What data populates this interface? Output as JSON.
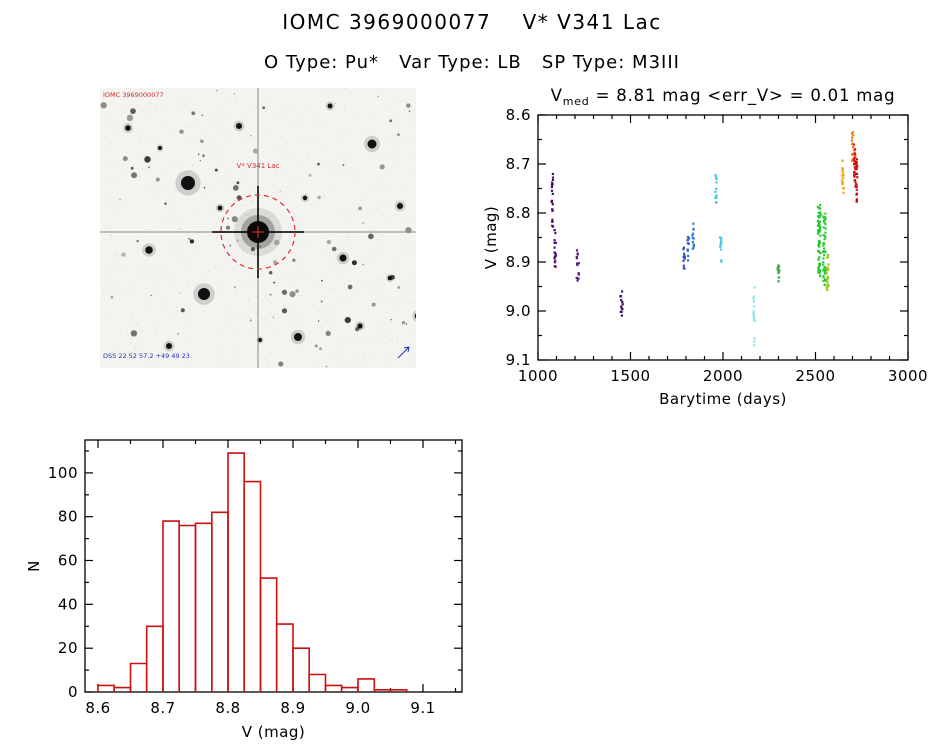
{
  "page": {
    "title": "IOMC 3969000077    V* V341 Lac",
    "subtitle": "O Type: Pu*   Var Type: LB   SP Type: M3III"
  },
  "finder": {
    "corner_label": "IOMC 3969000077",
    "target_label": "V* V341 Lac",
    "bottom_label": "DSS 22 52 57.2 +49 49 23",
    "accent_red": "#d43030",
    "accent_blue": "#2233bb"
  },
  "chart_data": [
    {
      "type": "scatter",
      "name": "light_curve",
      "title": {
        "main": "V",
        "sub": "med",
        "rest": " = 8.81 mag <err_V> = 0.01 mag"
      },
      "xlabel": "Barytime (days)",
      "ylabel": "V (mag)",
      "xlim": [
        1000,
        3000
      ],
      "ylim": [
        9.1,
        8.6
      ],
      "y_inverted": true,
      "xticks": [
        1000,
        1500,
        2000,
        2500,
        3000
      ],
      "yticks": [
        8.6,
        8.7,
        8.8,
        8.9,
        9.0,
        9.1
      ],
      "x_minor_step": 100,
      "y_minor_step": 0.05,
      "v_med": 8.81,
      "err_v": 0.01,
      "clusters": [
        {
          "x": 1078,
          "jx": 4,
          "v1": 8.72,
          "v2": 8.83,
          "n": 22,
          "color": "#4c0c69"
        },
        {
          "x": 1094,
          "jx": 5,
          "v1": 8.83,
          "v2": 8.91,
          "n": 18,
          "color": "#55127a"
        },
        {
          "x": 1215,
          "jx": 6,
          "v1": 8.87,
          "v2": 8.94,
          "n": 14,
          "color": "#531a7a"
        },
        {
          "x": 1452,
          "jx": 6,
          "v1": 8.96,
          "v2": 9.01,
          "n": 12,
          "color": "#3d1363"
        },
        {
          "x": 1790,
          "jx": 4,
          "v1": 8.86,
          "v2": 8.92,
          "n": 12,
          "color": "#2b52c9"
        },
        {
          "x": 1812,
          "jx": 4,
          "v1": 8.84,
          "v2": 8.9,
          "n": 10,
          "color": "#2f63d0"
        },
        {
          "x": 1838,
          "jx": 4,
          "v1": 8.82,
          "v2": 8.88,
          "n": 12,
          "color": "#2f7fd4"
        },
        {
          "x": 1962,
          "jx": 4,
          "v1": 8.72,
          "v2": 8.78,
          "n": 12,
          "color": "#40c8e0"
        },
        {
          "x": 1988,
          "jx": 4,
          "v1": 8.84,
          "v2": 8.9,
          "n": 12,
          "color": "#45cade"
        },
        {
          "x": 2168,
          "jx": 4,
          "v1": 8.95,
          "v2": 9.07,
          "n": 16,
          "color": "#8ae6ea"
        },
        {
          "x": 2300,
          "jx": 5,
          "v1": 8.9,
          "v2": 8.94,
          "n": 10,
          "color": "#2fa844"
        },
        {
          "x": 2520,
          "jx": 7,
          "v1": 8.78,
          "v2": 8.93,
          "n": 60,
          "color": "#21c92d"
        },
        {
          "x": 2548,
          "jx": 7,
          "v1": 8.8,
          "v2": 8.95,
          "n": 50,
          "color": "#2ecc3a"
        },
        {
          "x": 2566,
          "jx": 5,
          "v1": 8.88,
          "v2": 8.96,
          "n": 20,
          "color": "#9acd1e"
        },
        {
          "x": 2648,
          "jx": 5,
          "v1": 8.69,
          "v2": 8.76,
          "n": 18,
          "color": "#f6a818"
        },
        {
          "x": 2700,
          "jx": 4,
          "v1": 8.62,
          "v2": 8.7,
          "n": 16,
          "color": "#f07f12"
        },
        {
          "x": 2712,
          "jx": 4,
          "v1": 8.66,
          "v2": 8.75,
          "n": 30,
          "color": "#e31616"
        },
        {
          "x": 2722,
          "jx": 4,
          "v1": 8.69,
          "v2": 8.78,
          "n": 20,
          "color": "#bb1111"
        }
      ]
    },
    {
      "type": "bar",
      "name": "histogram",
      "xlabel": "V (mag)",
      "ylabel": "N",
      "xlim": [
        8.58,
        9.16
      ],
      "ylim": [
        0,
        115
      ],
      "xticks": [
        8.6,
        8.7,
        8.8,
        8.9,
        9.0,
        9.1
      ],
      "yticks": [
        0,
        20,
        40,
        60,
        80,
        100
      ],
      "bin_start": 8.6,
      "bin_width": 0.025,
      "counts": [
        3,
        2,
        13,
        30,
        78,
        76,
        77,
        82,
        109,
        96,
        52,
        31,
        20,
        8,
        3,
        2,
        6,
        1,
        1
      ],
      "color": "#cc1111",
      "grid": false
    }
  ]
}
